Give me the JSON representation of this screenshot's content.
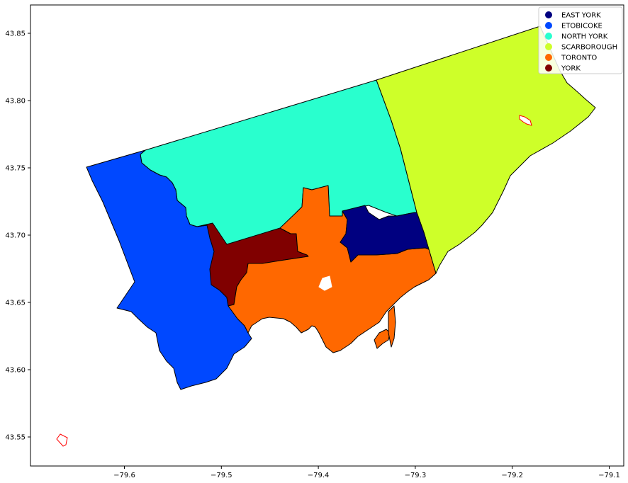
{
  "map": {
    "axes": {
      "x_ticks": [
        {
          "value": -79.6,
          "label": "−79.6"
        },
        {
          "value": -79.5,
          "label": "−79.5"
        },
        {
          "value": -79.4,
          "label": "−79.4"
        },
        {
          "value": -79.3,
          "label": "−79.3"
        },
        {
          "value": -79.2,
          "label": "−79.2"
        },
        {
          "value": -79.1,
          "label": "−79.1"
        }
      ],
      "y_ticks": [
        {
          "value": 43.55,
          "label": "43.55"
        },
        {
          "value": 43.6,
          "label": "43.60"
        },
        {
          "value": 43.65,
          "label": "43.65"
        },
        {
          "value": 43.7,
          "label": "43.70"
        },
        {
          "value": 43.75,
          "label": "43.75"
        },
        {
          "value": 43.8,
          "label": "43.80"
        },
        {
          "value": 43.85,
          "label": "43.85"
        }
      ]
    },
    "legend": {
      "position": "top-right",
      "entries": [
        {
          "label": "EAST YORK",
          "color": "#000080"
        },
        {
          "label": "ETOBICOKE",
          "color": "#0048ff"
        },
        {
          "label": "NORTH YORK",
          "color": "#29ffce"
        },
        {
          "label": "SCARBOROUGH",
          "color": "#ceff29"
        },
        {
          "label": "TORONTO",
          "color": "#ff6800"
        },
        {
          "label": "YORK",
          "color": "#800000"
        }
      ]
    },
    "boundary_color": "#000000",
    "highlight_color": "#ff0000"
  }
}
